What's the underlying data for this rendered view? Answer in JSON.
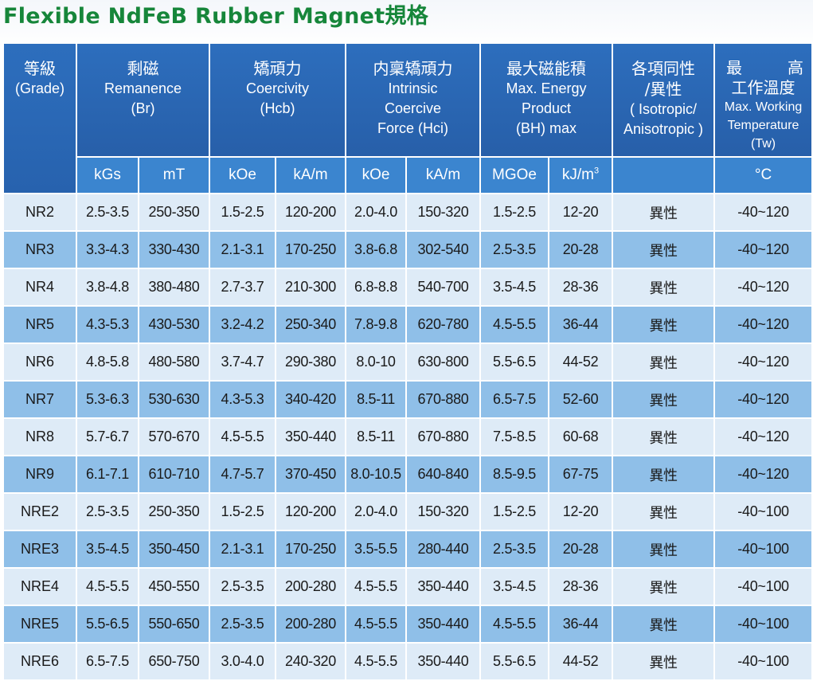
{
  "title": "Flexible NdFeB Rubber Magnet規格",
  "headers": {
    "grade": {
      "zh": "等級",
      "en": "(Grade)"
    },
    "br": {
      "zh": "剩磁",
      "en1": "Remanence",
      "en2": "(Br)"
    },
    "hcb": {
      "zh": "矯頑力",
      "en1": "Coercivity",
      "en2": "(Hcb)"
    },
    "hci": {
      "zh": "内稟矯頑力",
      "en1": "Intrinsic",
      "en2": "Coercive",
      "en3": "Force (Hci)"
    },
    "bh": {
      "zh": "最大磁能積",
      "en1": "Max. Energy",
      "en2": "Product",
      "en3": "(BH) max"
    },
    "iso": {
      "zh1": "各項同性",
      "zh2": "/異性",
      "en1": "( Isotropic/",
      "en2": "Anisotropic )"
    },
    "temp": {
      "zh1": "最　高",
      "zh2": "工作溫度",
      "en1": "Max. Working",
      "en2": "Temperature",
      "en3": "(Tw)"
    }
  },
  "units": {
    "br_kgs": "kGs",
    "br_mt": "mT",
    "hcb_koe": "kOe",
    "hcb_kam": "kA/m",
    "hci_koe": "kOe",
    "hci_kam": "kA/m",
    "bh_mgoe": "MGOe",
    "bh_kj": "kJ/m",
    "bh_kj_sup": "3",
    "temp_c": "°C"
  },
  "rows": [
    {
      "grade": "NR2",
      "br_kgs": "2.5-3.5",
      "br_mt": "250-350",
      "hcb_koe": "1.5-2.5",
      "hcb_kam": "120-200",
      "hci_koe": "2.0-4.0",
      "hci_kam": "150-320",
      "bh_mgoe": "1.5-2.5",
      "bh_kj": "12-20",
      "aniso": "異性",
      "temp": "-40~120"
    },
    {
      "grade": "NR3",
      "br_kgs": "3.3-4.3",
      "br_mt": "330-430",
      "hcb_koe": "2.1-3.1",
      "hcb_kam": "170-250",
      "hci_koe": "3.8-6.8",
      "hci_kam": "302-540",
      "bh_mgoe": "2.5-3.5",
      "bh_kj": "20-28",
      "aniso": "異性",
      "temp": "-40~120"
    },
    {
      "grade": "NR4",
      "br_kgs": "3.8-4.8",
      "br_mt": "380-480",
      "hcb_koe": "2.7-3.7",
      "hcb_kam": "210-300",
      "hci_koe": "6.8-8.8",
      "hci_kam": "540-700",
      "bh_mgoe": "3.5-4.5",
      "bh_kj": "28-36",
      "aniso": "異性",
      "temp": "-40~120"
    },
    {
      "grade": "NR5",
      "br_kgs": "4.3-5.3",
      "br_mt": "430-530",
      "hcb_koe": "3.2-4.2",
      "hcb_kam": "250-340",
      "hci_koe": "7.8-9.8",
      "hci_kam": "620-780",
      "bh_mgoe": "4.5-5.5",
      "bh_kj": "36-44",
      "aniso": "異性",
      "temp": "-40~120"
    },
    {
      "grade": "NR6",
      "br_kgs": "4.8-5.8",
      "br_mt": "480-580",
      "hcb_koe": "3.7-4.7",
      "hcb_kam": "290-380",
      "hci_koe": "8.0-10",
      "hci_kam": "630-800",
      "bh_mgoe": "5.5-6.5",
      "bh_kj": "44-52",
      "aniso": "異性",
      "temp": "-40~120"
    },
    {
      "grade": "NR7",
      "br_kgs": "5.3-6.3",
      "br_mt": "530-630",
      "hcb_koe": "4.3-5.3",
      "hcb_kam": "340-420",
      "hci_koe": "8.5-11",
      "hci_kam": "670-880",
      "bh_mgoe": "6.5-7.5",
      "bh_kj": "52-60",
      "aniso": "異性",
      "temp": "-40~120"
    },
    {
      "grade": "NR8",
      "br_kgs": "5.7-6.7",
      "br_mt": "570-670",
      "hcb_koe": "4.5-5.5",
      "hcb_kam": "350-440",
      "hci_koe": "8.5-11",
      "hci_kam": "670-880",
      "bh_mgoe": "7.5-8.5",
      "bh_kj": "60-68",
      "aniso": "異性",
      "temp": "-40~120"
    },
    {
      "grade": "NR9",
      "br_kgs": "6.1-7.1",
      "br_mt": "610-710",
      "hcb_koe": "4.7-5.7",
      "hcb_kam": "370-450",
      "hci_koe": "8.0-10.5",
      "hci_kam": "640-840",
      "bh_mgoe": "8.5-9.5",
      "bh_kj": "67-75",
      "aniso": "異性",
      "temp": "-40~120"
    },
    {
      "grade": "NRE2",
      "br_kgs": "2.5-3.5",
      "br_mt": "250-350",
      "hcb_koe": "1.5-2.5",
      "hcb_kam": "120-200",
      "hci_koe": "2.0-4.0",
      "hci_kam": "150-320",
      "bh_mgoe": "1.5-2.5",
      "bh_kj": "12-20",
      "aniso": "異性",
      "temp": "-40~100"
    },
    {
      "grade": "NRE3",
      "br_kgs": "3.5-4.5",
      "br_mt": "350-450",
      "hcb_koe": "2.1-3.1",
      "hcb_kam": "170-250",
      "hci_koe": "3.5-5.5",
      "hci_kam": "280-440",
      "bh_mgoe": "2.5-3.5",
      "bh_kj": "20-28",
      "aniso": "異性",
      "temp": "-40~100"
    },
    {
      "grade": "NRE4",
      "br_kgs": "4.5-5.5",
      "br_mt": "450-550",
      "hcb_koe": "2.5-3.5",
      "hcb_kam": "200-280",
      "hci_koe": "4.5-5.5",
      "hci_kam": "350-440",
      "bh_mgoe": "3.5-4.5",
      "bh_kj": "28-36",
      "aniso": "異性",
      "temp": "-40~100"
    },
    {
      "grade": "NRE5",
      "br_kgs": "5.5-6.5",
      "br_mt": "550-650",
      "hcb_koe": "2.5-3.5",
      "hcb_kam": "200-280",
      "hci_koe": "4.5-5.5",
      "hci_kam": "350-440",
      "bh_mgoe": "4.5-5.5",
      "bh_kj": "36-44",
      "aniso": "異性",
      "temp": "-40~100"
    },
    {
      "grade": "NRE6",
      "br_kgs": "6.5-7.5",
      "br_mt": "650-750",
      "hcb_koe": "3.0-4.0",
      "hcb_kam": "240-320",
      "hci_koe": "4.5-5.5",
      "hci_kam": "350-440",
      "bh_mgoe": "5.5-6.5",
      "bh_kj": "44-52",
      "aniso": "異性",
      "temp": "-40~100"
    }
  ]
}
